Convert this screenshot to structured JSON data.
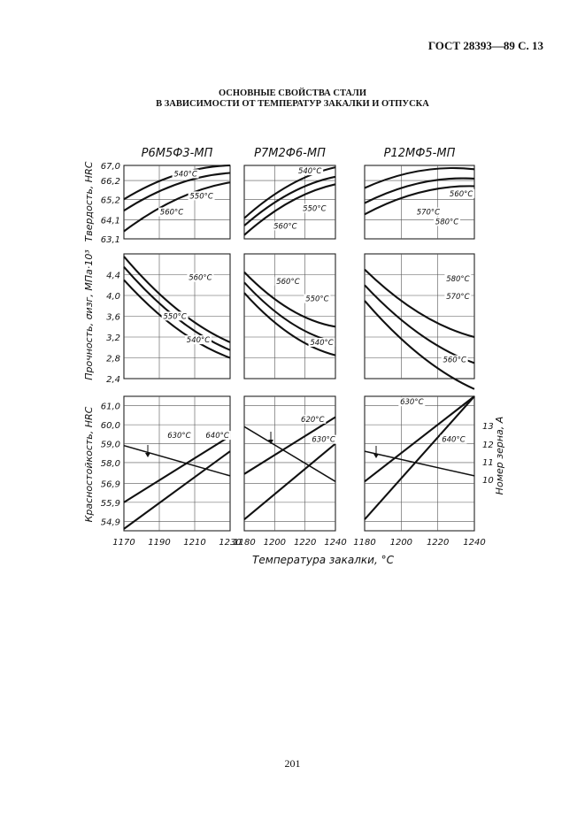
{
  "header": "ГОСТ 28393—89 С. 13",
  "title_line1": "ОСНОВНЫЕ СВОЙСТВА СТАЛИ",
  "title_line2": "В ЗАВИСИМОСТИ ОТ ТЕМПЕРАТУР ЗАКАЛКИ И ОТПУСКА",
  "page_number": "201",
  "figure": {
    "columns": [
      "Р6М5Ф3-МП",
      "Р7М2Ф6-МП",
      "Р12МФ5-МП"
    ],
    "xlabel": "Температура закалки, °C",
    "right_axis_label": "Номер зерна, А",
    "row_labels": [
      "Твердость, HRC",
      "Прочность, σизг, МПа·10³",
      "Красностойкость, HRC"
    ],
    "x_ticks": [
      [
        "1170",
        "1190",
        "1210",
        "1230"
      ],
      [
        "1180",
        "1200",
        "1220",
        "1240"
      ],
      [
        "1180",
        "1200",
        "1220",
        "1240"
      ]
    ],
    "y_ticks": {
      "hardness": [
        "67,0",
        "66,2",
        "65,2",
        "64,1",
        "63,1"
      ],
      "strength": [
        "4,4",
        "4,0",
        "3,6",
        "3,2",
        "2,8",
        "2,4"
      ],
      "red_hardness": [
        "61,0",
        "60,0",
        "59,0",
        "58,0",
        "56,9",
        "55,9",
        "54,9"
      ],
      "grain": [
        "13",
        "12",
        "11",
        "10"
      ]
    }
  },
  "chart_data": [
    {
      "type": "line",
      "chart": "Твердость, HRC — Р6М5Ф3-МП",
      "x": [
        1170,
        1230
      ],
      "ylim": [
        63.1,
        67.0
      ],
      "series": [
        {
          "name": "540°C",
          "values": [
            65.2,
            67.0
          ]
        },
        {
          "name": "550°C",
          "values": [
            64.6,
            66.6
          ]
        },
        {
          "name": "560°C",
          "values": [
            63.5,
            66.1
          ]
        }
      ]
    },
    {
      "type": "line",
      "chart": "Твердость, HRC — Р7М2Ф6-МП",
      "x": [
        1180,
        1240
      ],
      "ylim": [
        63.1,
        67.0
      ],
      "series": [
        {
          "name": "540°C",
          "values": [
            64.2,
            66.9
          ]
        },
        {
          "name": "550°C",
          "values": [
            63.8,
            66.4
          ]
        },
        {
          "name": "560°C",
          "values": [
            63.3,
            66.0
          ]
        }
      ]
    },
    {
      "type": "line",
      "chart": "Твердость, HRC — Р12МФ5-МП",
      "x": [
        1180,
        1240
      ],
      "ylim": [
        63.1,
        67.0
      ],
      "series": [
        {
          "name": "560°C",
          "values": [
            65.8,
            66.8
          ]
        },
        {
          "name": "570°C",
          "values": [
            65.0,
            66.3
          ]
        },
        {
          "name": "580°C",
          "values": [
            64.4,
            65.9
          ]
        }
      ]
    },
    {
      "type": "line",
      "chart": "Прочность — Р6М5Ф3-МП",
      "x": [
        1170,
        1230
      ],
      "ylim": [
        2.4,
        4.8
      ],
      "series": [
        {
          "name": "560°C",
          "values": [
            4.75,
            3.1
          ]
        },
        {
          "name": "550°C",
          "values": [
            4.55,
            2.95
          ]
        },
        {
          "name": "540°C",
          "values": [
            4.3,
            2.8
          ]
        }
      ]
    },
    {
      "type": "line",
      "chart": "Прочность — Р7М2Ф6-МП",
      "x": [
        1180,
        1240
      ],
      "ylim": [
        2.4,
        4.8
      ],
      "series": [
        {
          "name": "560°C",
          "values": [
            4.45,
            3.4
          ]
        },
        {
          "name": "550°C",
          "values": [
            4.25,
            3.1
          ]
        },
        {
          "name": "540°C",
          "values": [
            4.05,
            2.85
          ]
        }
      ]
    },
    {
      "type": "line",
      "chart": "Прочность — Р12МФ5-МП",
      "x": [
        1180,
        1240
      ],
      "ylim": [
        2.4,
        4.8
      ],
      "series": [
        {
          "name": "580°C",
          "values": [
            4.5,
            3.2
          ]
        },
        {
          "name": "570°C",
          "values": [
            4.2,
            2.7
          ]
        },
        {
          "name": "560°C",
          "values": [
            3.9,
            2.2
          ]
        }
      ]
    },
    {
      "type": "line",
      "chart": "Красностойкость, HRC / Номер зерна — Р6М5Ф3-МП",
      "x": [
        1170,
        1230
      ],
      "ylim": [
        54.4,
        61.5
      ],
      "series": [
        {
          "name": "640°C",
          "values": [
            55.9,
            59.4
          ]
        },
        {
          "name": "630°C",
          "values": [
            54.5,
            58.6
          ]
        },
        {
          "name": "Номер зерна",
          "values": [
            58.9,
            57.3
          ]
        }
      ]
    },
    {
      "type": "line",
      "chart": "Красностойкость, HRC / Номер зерна — Р7М2Ф6-МП",
      "x": [
        1180,
        1240
      ],
      "ylim": [
        54.4,
        61.5
      ],
      "series": [
        {
          "name": "620°C",
          "values": [
            57.4,
            60.4
          ]
        },
        {
          "name": "630°C",
          "values": [
            55.0,
            59.0
          ]
        },
        {
          "name": "Номер зерна",
          "values": [
            59.9,
            57.0
          ]
        }
      ]
    },
    {
      "type": "line",
      "chart": "Красностойкость, HRC / Номер зерна — Р12МФ5-МП",
      "x": [
        1180,
        1240
      ],
      "ylim": [
        54.4,
        61.5
      ],
      "series": [
        {
          "name": "630°C",
          "values": [
            57.0,
            61.5
          ]
        },
        {
          "name": "640°C",
          "values": [
            55.0,
            61.5
          ]
        },
        {
          "name": "Номер зерна",
          "values": [
            58.6,
            57.3
          ]
        }
      ]
    }
  ]
}
